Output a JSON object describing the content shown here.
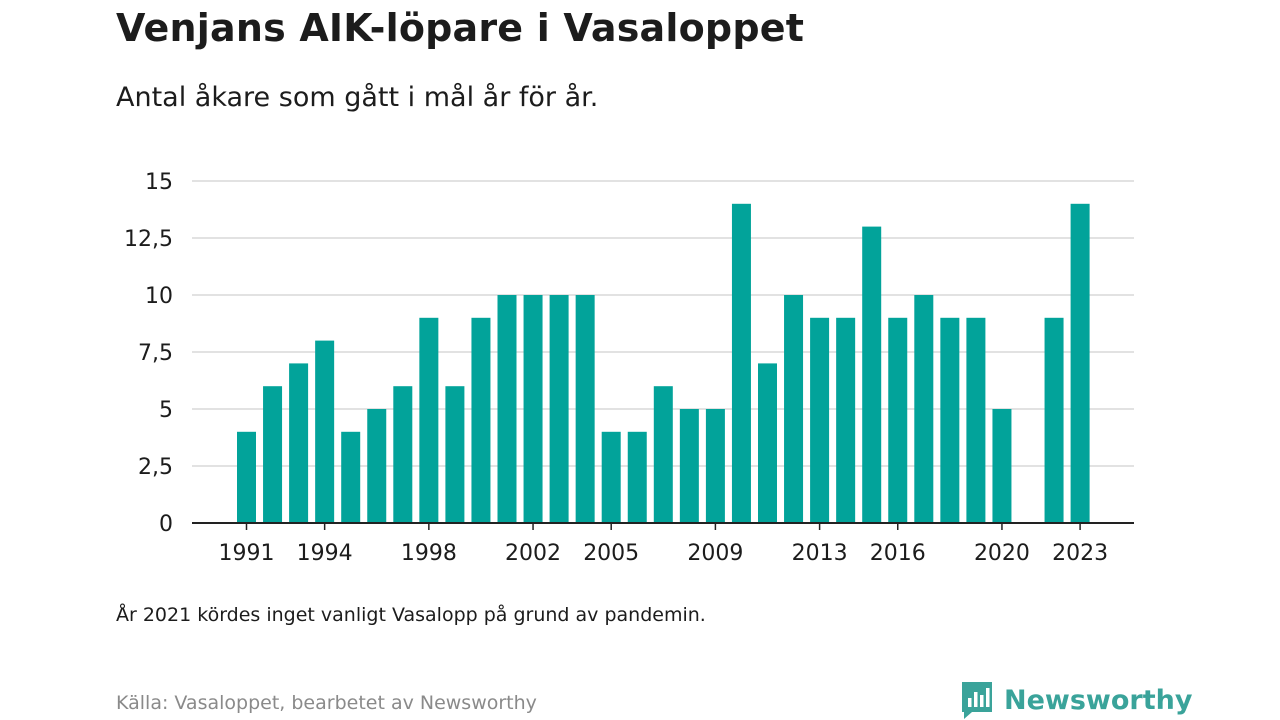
{
  "header": {
    "title": "Venjans AIK-löpare i Vasaloppet",
    "subtitle": "Antal åkare som gått i mål år för år."
  },
  "footer": {
    "note": "År 2021 kördes inget vanligt Vasalopp på grund av pandemin.",
    "source": "Källa: Vasaloppet, bearbetet av Newsworthy",
    "brand": "Newsworthy"
  },
  "colors": {
    "bar": "#02a39a",
    "grid": "#d9d9d9",
    "axis": "#222222",
    "text": "#1c1c1c",
    "brand": "#3aa39a"
  },
  "chart_data": {
    "type": "bar",
    "x": [
      1991,
      1992,
      1993,
      1994,
      1995,
      1996,
      1997,
      1998,
      1999,
      2000,
      2001,
      2002,
      2003,
      2004,
      2005,
      2006,
      2007,
      2008,
      2009,
      2010,
      2011,
      2012,
      2013,
      2014,
      2015,
      2016,
      2017,
      2018,
      2019,
      2020,
      2021,
      2022,
      2023
    ],
    "values": [
      4,
      6,
      7,
      8,
      4,
      5,
      6,
      9,
      6,
      9,
      10,
      10,
      10,
      10,
      4,
      4,
      6,
      5,
      5,
      14,
      7,
      10,
      9,
      9,
      13,
      9,
      10,
      9,
      9,
      5,
      null,
      9,
      14
    ],
    "ylim": [
      0,
      15
    ],
    "yticks": [
      0,
      2.5,
      5,
      7.5,
      10,
      12.5,
      15
    ],
    "ytick_labels": [
      "0",
      "2,5",
      "5",
      "7,5",
      "10",
      "12,5",
      "15"
    ],
    "xtick_labels": [
      "1991",
      "1994",
      "1998",
      "2002",
      "2005",
      "2009",
      "2013",
      "2016",
      "2020",
      "2023"
    ],
    "grid": true,
    "legend": "none"
  }
}
